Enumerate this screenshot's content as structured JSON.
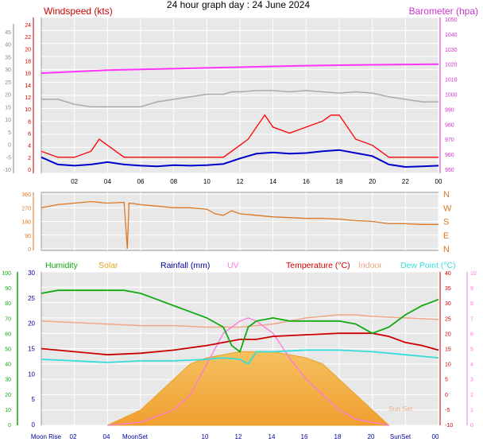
{
  "page": {
    "title": "24 hour graph day : 24 June 2024"
  },
  "chart_data": [
    {
      "type": "line",
      "panel": "wind_pressure",
      "left_label": "Windspeed (kts)",
      "right_label": "Barometer (hpa)",
      "colors": {
        "left_label": "#cc0000",
        "right_label": "#cc33cc",
        "gust": "#ff0000",
        "avg": "#0000cc",
        "pressure": "#ff33ff",
        "gray_line": "#aaaaaa",
        "outer_axis": "#888888"
      },
      "x_ticks": [
        "02",
        "04",
        "06",
        "08",
        "10",
        "12",
        "14",
        "16",
        "18",
        "20",
        "22",
        "00"
      ],
      "outer_left_ticks": [
        "45",
        "40",
        "35",
        "30",
        "25",
        "20",
        "15",
        "10",
        "5",
        "0",
        "-5",
        "-10"
      ],
      "left_ticks": [
        "24",
        "22",
        "20",
        "18",
        "16",
        "14",
        "12",
        "10",
        "8",
        "6",
        "4",
        "2",
        "0"
      ],
      "right_ticks": [
        "1050",
        "1040",
        "1030",
        "1020",
        "1010",
        "1000",
        "990",
        "980",
        "970",
        "960",
        "950"
      ],
      "ylim_left": [
        0,
        25
      ],
      "ylim_right": [
        947,
        1050
      ],
      "series": [
        {
          "name": "gust",
          "x": [
            0,
            1,
            2,
            3,
            3.5,
            4,
            4.5,
            5,
            6,
            7,
            8,
            9,
            10,
            11,
            11.5,
            12,
            12.5,
            13,
            13.5,
            14,
            15,
            16,
            17,
            17.5,
            18,
            18.5,
            19,
            20,
            21,
            22,
            23,
            24
          ],
          "y": [
            3,
            2,
            2,
            3,
            5,
            4,
            3,
            2,
            2,
            2,
            2,
            2,
            2,
            2,
            3,
            4,
            5,
            7,
            9,
            7,
            6,
            7,
            8,
            9,
            9,
            7,
            5,
            4,
            2,
            2,
            2,
            2
          ]
        },
        {
          "name": "avg",
          "x": [
            0,
            1,
            2,
            3,
            4,
            5,
            6,
            7,
            8,
            9,
            10,
            11,
            12,
            13,
            14,
            15,
            16,
            17,
            18,
            19,
            20,
            21,
            22,
            23,
            24
          ],
          "y": [
            2,
            0.8,
            0.6,
            0.8,
            1.2,
            0.8,
            0.6,
            0.5,
            0.7,
            0.6,
            0.7,
            0.9,
            1.8,
            2.6,
            2.8,
            2.6,
            2.7,
            3.0,
            3.2,
            2.7,
            2.2,
            0.8,
            0.4,
            0.5,
            0.6
          ]
        },
        {
          "name": "pressure",
          "x": [
            0,
            2,
            4,
            6,
            8,
            10,
            12,
            14,
            16,
            18,
            20,
            22,
            24
          ],
          "y": [
            1014,
            1015,
            1016,
            1016.5,
            1017,
            1017.5,
            1018,
            1018.5,
            1019,
            1019.3,
            1019.6,
            1019.8,
            1020
          ]
        },
        {
          "name": "gray",
          "x": [
            0,
            1,
            2,
            3,
            4,
            5,
            6,
            6.5,
            7,
            8,
            9,
            10,
            11,
            11.5,
            12,
            13,
            14,
            15,
            16,
            17,
            18,
            19,
            20,
            21,
            22,
            23,
            24
          ],
          "y": [
            18,
            18,
            16,
            15,
            15,
            15,
            15,
            16,
            17,
            18,
            19,
            20,
            20,
            21,
            21,
            21.5,
            21.5,
            21,
            21.5,
            21,
            20.5,
            21,
            20.5,
            19,
            18,
            17,
            17
          ]
        }
      ]
    },
    {
      "type": "line",
      "panel": "wind_direction",
      "left_ticks": [
        "360",
        "270",
        "180",
        "90",
        "0"
      ],
      "right_ticks": [
        "N",
        "W",
        "S",
        "E",
        "N"
      ],
      "ylim": [
        0,
        360
      ],
      "color": "#dd7722",
      "series": [
        {
          "name": "direction",
          "x": [
            0,
            1,
            2,
            3,
            4,
            5,
            5.2,
            5.3,
            6,
            7,
            8,
            9,
            10,
            10.5,
            11,
            11.5,
            12,
            13,
            14,
            15,
            16,
            17,
            18,
            19,
            20,
            21,
            22,
            23,
            24
          ],
          "y": [
            270,
            290,
            300,
            310,
            300,
            305,
            0,
            300,
            290,
            280,
            270,
            270,
            260,
            230,
            220,
            250,
            230,
            220,
            210,
            205,
            200,
            200,
            195,
            185,
            180,
            165,
            165,
            160,
            160
          ]
        }
      ]
    },
    {
      "type": "line",
      "panel": "temperature_humidity",
      "legend": [
        {
          "label": "Humidity",
          "color": "#11aa11"
        },
        {
          "label": "Solar",
          "color": "#e8a020"
        },
        {
          "label": "Rainfall (mm)",
          "color": "#000099"
        },
        {
          "label": "UV",
          "color": "#ff77dd"
        },
        {
          "label": "Temperature (°C)",
          "color": "#cc0000"
        },
        {
          "label": "Indoor",
          "color": "#f0a888"
        },
        {
          "label": "Dew Point (°C)",
          "color": "#33dddd"
        }
      ],
      "x_ticks": [
        "Moon Rise",
        "02",
        "04",
        "MoonSet",
        "10",
        "12",
        "14",
        "16",
        "18",
        "20",
        "SunSet",
        "00"
      ],
      "outer_left_ticks": [
        "100",
        "90",
        "80",
        "70",
        "60",
        "50",
        "40",
        "30",
        "20",
        "10",
        "0"
      ],
      "left_ticks": [
        "30",
        "25",
        "20",
        "15",
        "10",
        "5",
        "0"
      ],
      "right_ticks": [
        "40",
        "35",
        "30",
        "25",
        "20",
        "15",
        "10",
        "5",
        "0",
        "-5",
        "-10"
      ],
      "uv_ticks": [
        "10",
        "9",
        "8",
        "7",
        "6",
        "5",
        "4",
        "3",
        "2",
        "1",
        "0"
      ],
      "annotation": "Sun Set",
      "ylim_temp": [
        -10,
        40
      ],
      "series": [
        {
          "name": "humidity",
          "x": [
            0,
            1,
            2,
            3,
            4,
            5,
            6,
            7,
            8,
            9,
            10,
            11,
            11.5,
            12,
            12.5,
            13,
            14,
            15,
            16,
            17,
            18,
            19,
            20,
            21,
            22,
            23,
            24
          ],
          "y": [
            33,
            34,
            34,
            34,
            34,
            34,
            33,
            31,
            29,
            27,
            25,
            22,
            16,
            14,
            22,
            24,
            25,
            24,
            24,
            24,
            24,
            23,
            20,
            22,
            26,
            29,
            31
          ]
        },
        {
          "name": "temperature",
          "x": [
            0,
            2,
            4,
            6,
            8,
            10,
            12,
            13,
            14,
            16,
            18,
            19,
            20,
            21,
            22,
            23,
            24
          ],
          "y": [
            15,
            14,
            13,
            13.5,
            14.5,
            16,
            18,
            18,
            19,
            19.5,
            20,
            20,
            20,
            19,
            17,
            16,
            14.5
          ]
        },
        {
          "name": "indoor",
          "x": [
            0,
            2,
            4,
            6,
            8,
            10,
            12,
            14,
            16,
            18,
            19,
            20,
            22,
            24
          ],
          "y": [
            24,
            23.5,
            23,
            22.5,
            22.5,
            22,
            22,
            23,
            25,
            26,
            26,
            25.5,
            25,
            24.5
          ]
        },
        {
          "name": "dew_point",
          "x": [
            0,
            2,
            4,
            6,
            8,
            10,
            11,
            12,
            12.5,
            13,
            14,
            16,
            18,
            20,
            22,
            24
          ],
          "y": [
            11.5,
            11,
            10.5,
            11,
            11,
            11.5,
            12,
            11.5,
            10,
            14,
            14,
            14.5,
            14.5,
            14,
            13,
            12
          ]
        },
        {
          "name": "solar",
          "x": [
            4,
            6,
            8,
            9,
            10,
            11,
            12,
            13,
            14,
            15,
            16,
            17,
            18,
            19,
            20,
            21
          ],
          "y": [
            -10,
            -5,
            5,
            10,
            12,
            13,
            14,
            14,
            14,
            13,
            12,
            10,
            5,
            0,
            -5,
            -10
          ]
        },
        {
          "name": "uv",
          "x": [
            4,
            6,
            8,
            9,
            10,
            11,
            12,
            12.5,
            13,
            14,
            15,
            16,
            17,
            18,
            19,
            20,
            21
          ],
          "y": [
            -10,
            -9,
            -5,
            0,
            10,
            20,
            24,
            25,
            24,
            20,
            12,
            5,
            0,
            -5,
            -8,
            -9,
            -10
          ]
        }
      ]
    }
  ]
}
